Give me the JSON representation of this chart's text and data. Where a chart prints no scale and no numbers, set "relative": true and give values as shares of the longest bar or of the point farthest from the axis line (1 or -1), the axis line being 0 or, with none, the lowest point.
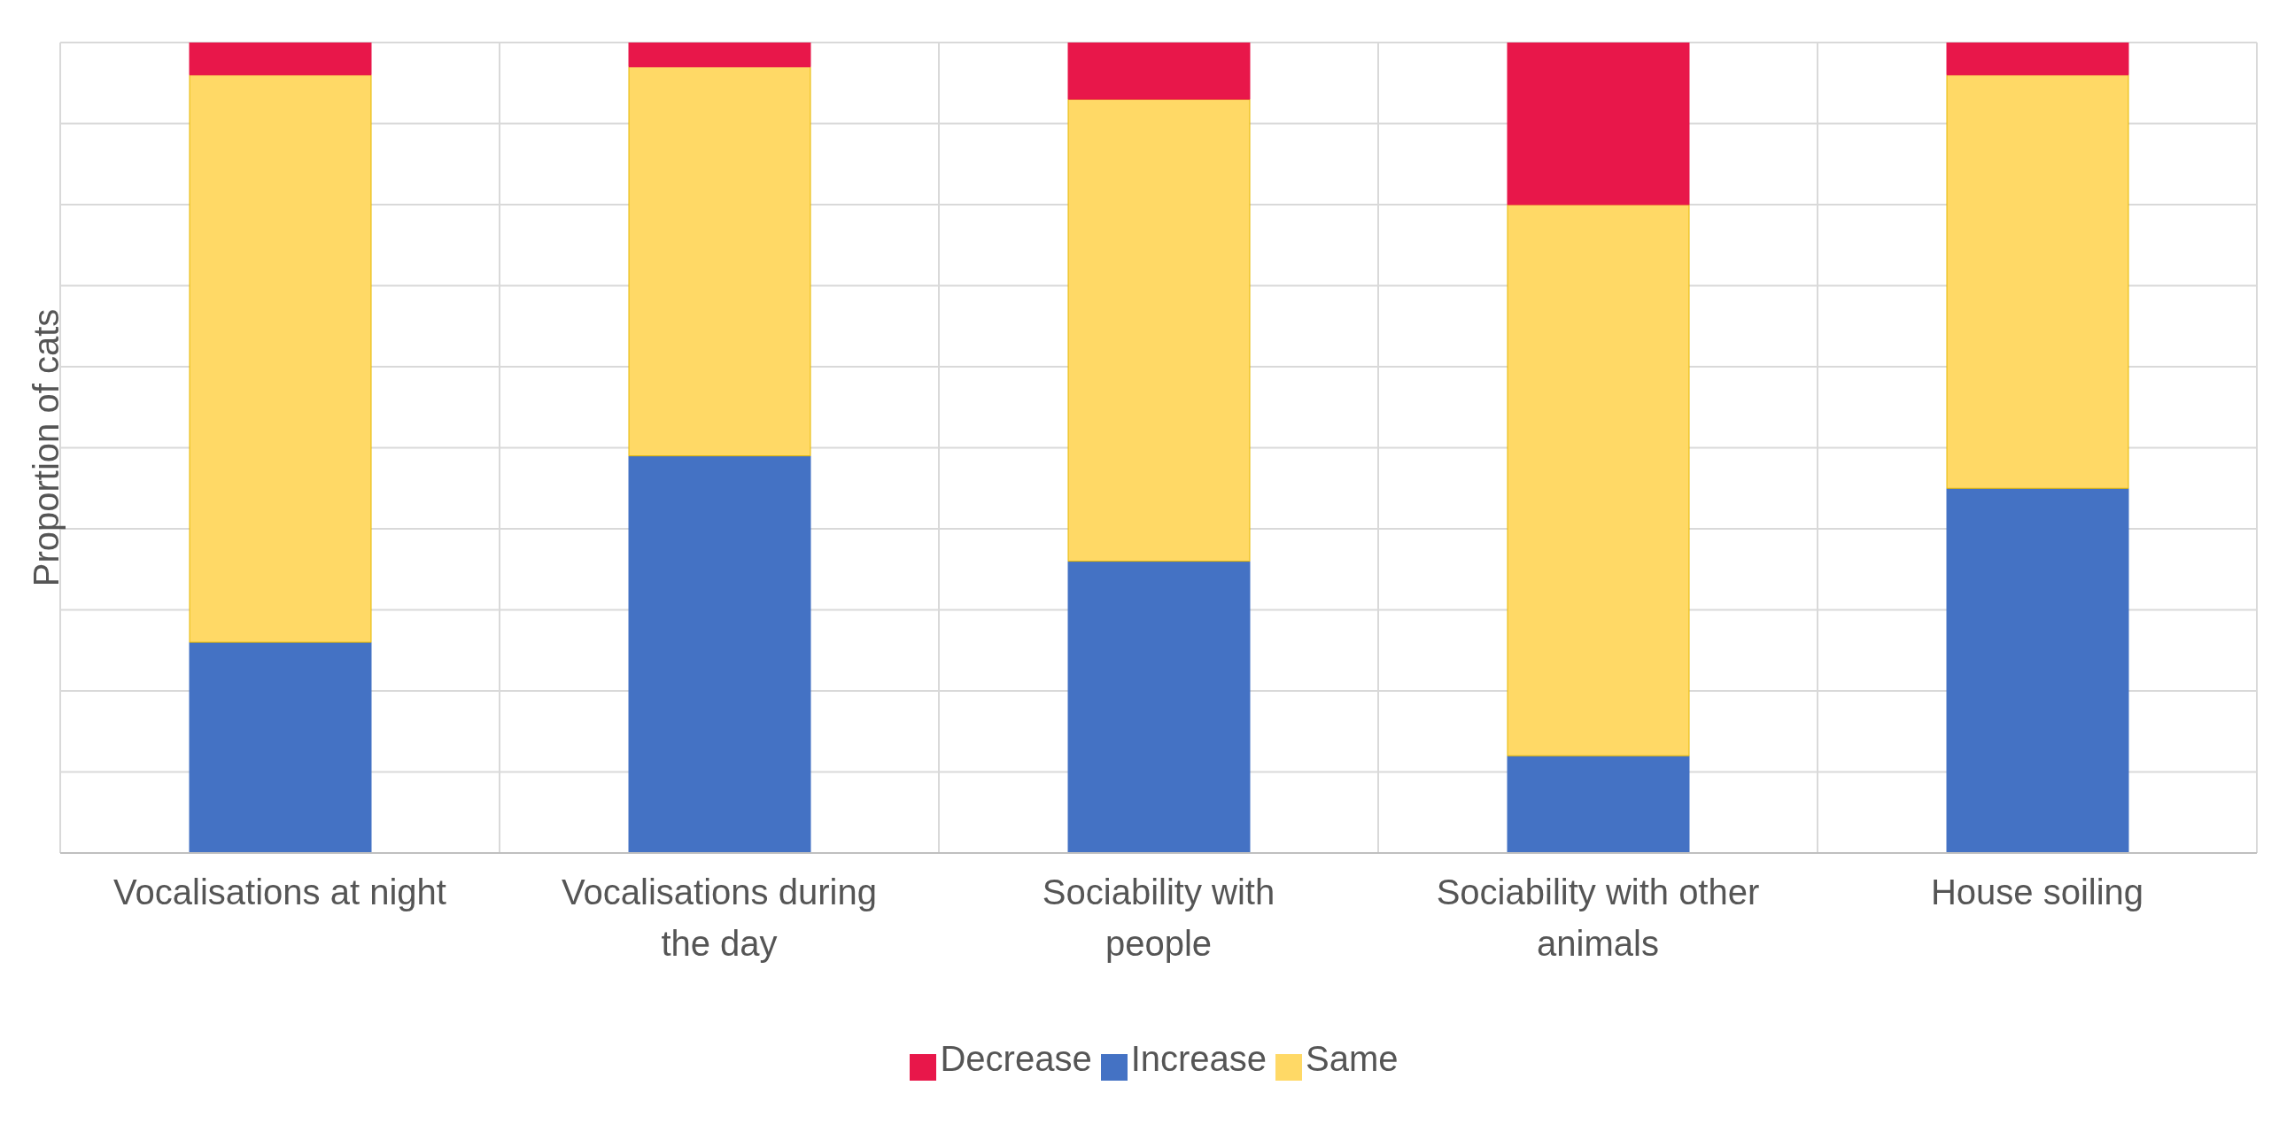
{
  "chart_data": {
    "type": "bar",
    "ylabel": "Proportion of cats",
    "relative": true,
    "stacked": true,
    "grid": true,
    "legend": "bottom",
    "categories": [
      "Vocalisations at night",
      "Vocalisations during the day",
      "Sociability with people",
      "Sociability with other animals",
      "House soiling"
    ],
    "series": [
      {
        "name": "Increase",
        "color": "#4472c4",
        "values": [
          0.26,
          0.49,
          0.36,
          0.12,
          0.45
        ]
      },
      {
        "name": "Same",
        "color": "#ffd966",
        "values": [
          0.7,
          0.48,
          0.57,
          0.68,
          0.51
        ]
      },
      {
        "name": "Decrease",
        "color": "#e8174a",
        "values": [
          0.04,
          0.03,
          0.07,
          0.2,
          0.04
        ]
      }
    ]
  }
}
